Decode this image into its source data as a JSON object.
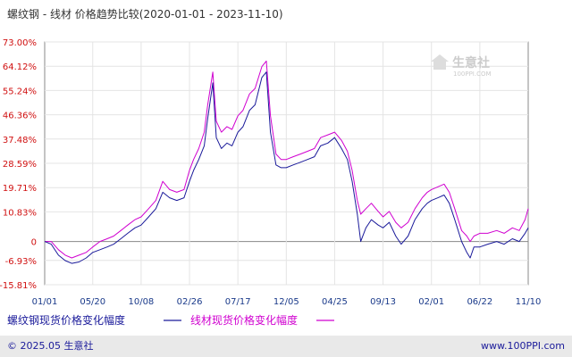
{
  "chart_data": {
    "type": "line",
    "title": "螺纹钢 - 线材 价格趋势比较(2020-01-01 - 2023-11-10)",
    "y_ticks": [
      "73.00%",
      "64.12%",
      "55.24%",
      "46.36%",
      "37.48%",
      "28.59%",
      "19.71%",
      "10.83%",
      "0",
      "-6.93%",
      "-15.81%"
    ],
    "y_tick_values": [
      73.0,
      64.12,
      55.24,
      46.36,
      37.48,
      28.59,
      19.71,
      10.83,
      0,
      -6.93,
      -15.81
    ],
    "ylim": [
      -15.81,
      73.0
    ],
    "x_ticks": [
      "01/01",
      "05/20",
      "10/08",
      "02/26",
      "07/17",
      "12/05",
      "04/25",
      "09/13",
      "02/01",
      "06/22",
      "11/10"
    ],
    "x_tick_dates": [
      "2020-01-01",
      "2020-05-20",
      "2020-10-08",
      "2021-02-26",
      "2021-07-17",
      "2021-12-05",
      "2022-04-25",
      "2022-09-13",
      "2023-02-01",
      "2023-06-22",
      "2023-11-10"
    ],
    "xlim": [
      "2020-01-01",
      "2023-11-10"
    ],
    "grid": true,
    "legend_placement": "bottom",
    "series": [
      {
        "name": "螺纹钢现货价格变化幅度",
        "color": "#1a1a9a",
        "points": [
          [
            "2020-01-01",
            0
          ],
          [
            "2020-01-20",
            -1
          ],
          [
            "2020-02-10",
            -5
          ],
          [
            "2020-03-01",
            -7
          ],
          [
            "2020-03-20",
            -8
          ],
          [
            "2020-04-10",
            -7.5
          ],
          [
            "2020-05-01",
            -6
          ],
          [
            "2020-05-20",
            -4
          ],
          [
            "2020-06-10",
            -3
          ],
          [
            "2020-07-01",
            -2
          ],
          [
            "2020-07-20",
            -1
          ],
          [
            "2020-08-10",
            1
          ],
          [
            "2020-08-30",
            3
          ],
          [
            "2020-09-20",
            5
          ],
          [
            "2020-10-08",
            6
          ],
          [
            "2020-10-30",
            9
          ],
          [
            "2020-11-20",
            12
          ],
          [
            "2020-12-10",
            18
          ],
          [
            "2020-12-30",
            16
          ],
          [
            "2021-01-20",
            15
          ],
          [
            "2021-02-10",
            16
          ],
          [
            "2021-02-26",
            22
          ],
          [
            "2021-03-10",
            26
          ],
          [
            "2021-03-25",
            30
          ],
          [
            "2021-04-10",
            35
          ],
          [
            "2021-04-20",
            45
          ],
          [
            "2021-05-05",
            58
          ],
          [
            "2021-05-15",
            38
          ],
          [
            "2021-05-30",
            34
          ],
          [
            "2021-06-15",
            36
          ],
          [
            "2021-06-30",
            35
          ],
          [
            "2021-07-17",
            40
          ],
          [
            "2021-08-01",
            42
          ],
          [
            "2021-08-20",
            48
          ],
          [
            "2021-09-05",
            50
          ],
          [
            "2021-09-25",
            60
          ],
          [
            "2021-10-08",
            62
          ],
          [
            "2021-10-20",
            40
          ],
          [
            "2021-11-05",
            28
          ],
          [
            "2021-11-20",
            27
          ],
          [
            "2021-12-05",
            27
          ],
          [
            "2021-12-25",
            28
          ],
          [
            "2022-01-15",
            29
          ],
          [
            "2022-02-05",
            30
          ],
          [
            "2022-02-25",
            31
          ],
          [
            "2022-03-15",
            35
          ],
          [
            "2022-04-05",
            36
          ],
          [
            "2022-04-25",
            38
          ],
          [
            "2022-05-15",
            34
          ],
          [
            "2022-06-01",
            30
          ],
          [
            "2022-06-15",
            22
          ],
          [
            "2022-06-30",
            10
          ],
          [
            "2022-07-10",
            0
          ],
          [
            "2022-07-25",
            5
          ],
          [
            "2022-08-10",
            8
          ],
          [
            "2022-08-30",
            6
          ],
          [
            "2022-09-13",
            5
          ],
          [
            "2022-10-01",
            7
          ],
          [
            "2022-10-20",
            2
          ],
          [
            "2022-11-05",
            -1
          ],
          [
            "2022-11-25",
            2
          ],
          [
            "2022-12-15",
            8
          ],
          [
            "2023-01-05",
            12
          ],
          [
            "2023-01-20",
            14
          ],
          [
            "2023-02-01",
            15
          ],
          [
            "2023-02-20",
            16
          ],
          [
            "2023-03-10",
            17
          ],
          [
            "2023-03-25",
            14
          ],
          [
            "2023-04-10",
            8
          ],
          [
            "2023-04-30",
            0
          ],
          [
            "2023-05-15",
            -4
          ],
          [
            "2023-05-25",
            -6
          ],
          [
            "2023-06-05",
            -2
          ],
          [
            "2023-06-22",
            -2
          ],
          [
            "2023-07-15",
            -1
          ],
          [
            "2023-08-10",
            0
          ],
          [
            "2023-09-01",
            -1
          ],
          [
            "2023-09-25",
            1
          ],
          [
            "2023-10-15",
            0
          ],
          [
            "2023-11-01",
            3
          ],
          [
            "2023-11-10",
            5
          ]
        ]
      },
      {
        "name": "线材现货价格变化幅度",
        "color": "#d000d0",
        "points": [
          [
            "2020-01-01",
            0
          ],
          [
            "2020-01-20",
            0
          ],
          [
            "2020-02-10",
            -3
          ],
          [
            "2020-03-01",
            -5
          ],
          [
            "2020-03-20",
            -6
          ],
          [
            "2020-04-10",
            -5
          ],
          [
            "2020-05-01",
            -4
          ],
          [
            "2020-05-20",
            -2
          ],
          [
            "2020-06-10",
            0
          ],
          [
            "2020-07-01",
            1
          ],
          [
            "2020-07-20",
            2
          ],
          [
            "2020-08-10",
            4
          ],
          [
            "2020-08-30",
            6
          ],
          [
            "2020-09-20",
            8
          ],
          [
            "2020-10-08",
            9
          ],
          [
            "2020-10-30",
            12
          ],
          [
            "2020-11-20",
            15
          ],
          [
            "2020-12-10",
            22
          ],
          [
            "2020-12-30",
            19
          ],
          [
            "2021-01-20",
            18
          ],
          [
            "2021-02-10",
            19
          ],
          [
            "2021-02-26",
            26
          ],
          [
            "2021-03-10",
            30
          ],
          [
            "2021-03-25",
            34
          ],
          [
            "2021-04-10",
            40
          ],
          [
            "2021-04-20",
            50
          ],
          [
            "2021-05-05",
            62
          ],
          [
            "2021-05-15",
            44
          ],
          [
            "2021-05-30",
            40
          ],
          [
            "2021-06-15",
            42
          ],
          [
            "2021-06-30",
            41
          ],
          [
            "2021-07-17",
            46
          ],
          [
            "2021-08-01",
            48
          ],
          [
            "2021-08-20",
            54
          ],
          [
            "2021-09-05",
            56
          ],
          [
            "2021-09-25",
            64
          ],
          [
            "2021-10-08",
            66
          ],
          [
            "2021-10-20",
            46
          ],
          [
            "2021-11-05",
            32
          ],
          [
            "2021-11-20",
            30
          ],
          [
            "2021-12-05",
            30
          ],
          [
            "2021-12-25",
            31
          ],
          [
            "2022-01-15",
            32
          ],
          [
            "2022-02-05",
            33
          ],
          [
            "2022-02-25",
            34
          ],
          [
            "2022-03-15",
            38
          ],
          [
            "2022-04-05",
            39
          ],
          [
            "2022-04-25",
            40
          ],
          [
            "2022-05-15",
            37
          ],
          [
            "2022-06-01",
            33
          ],
          [
            "2022-06-15",
            26
          ],
          [
            "2022-06-30",
            15
          ],
          [
            "2022-07-10",
            10
          ],
          [
            "2022-07-25",
            12
          ],
          [
            "2022-08-10",
            14
          ],
          [
            "2022-08-30",
            11
          ],
          [
            "2022-09-13",
            9
          ],
          [
            "2022-10-01",
            11
          ],
          [
            "2022-10-20",
            7
          ],
          [
            "2022-11-05",
            5
          ],
          [
            "2022-11-25",
            7
          ],
          [
            "2022-12-15",
            12
          ],
          [
            "2023-01-05",
            16
          ],
          [
            "2023-01-20",
            18
          ],
          [
            "2023-02-01",
            19
          ],
          [
            "2023-02-20",
            20
          ],
          [
            "2023-03-10",
            21
          ],
          [
            "2023-03-25",
            18
          ],
          [
            "2023-04-10",
            12
          ],
          [
            "2023-04-30",
            4
          ],
          [
            "2023-05-15",
            2
          ],
          [
            "2023-05-25",
            0
          ],
          [
            "2023-06-05",
            2
          ],
          [
            "2023-06-22",
            3
          ],
          [
            "2023-07-15",
            3
          ],
          [
            "2023-08-10",
            4
          ],
          [
            "2023-09-01",
            3
          ],
          [
            "2023-09-25",
            5
          ],
          [
            "2023-10-15",
            4
          ],
          [
            "2023-11-01",
            8
          ],
          [
            "2023-11-10",
            12
          ]
        ]
      }
    ]
  },
  "logo": {
    "text": "生意社",
    "sub": "100PPI.COM"
  },
  "footer": {
    "left": "© 2025.05 生意社",
    "right": "www.100PPI.com"
  }
}
